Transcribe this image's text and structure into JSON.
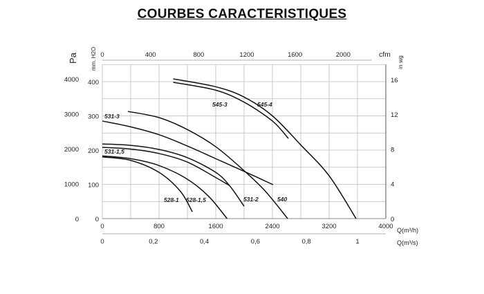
{
  "title": "COURBES CARACTERISTIQUES",
  "chart_data": {
    "type": "line",
    "title": "COURBES CARACTERISTIQUES",
    "x_axis": {
      "label": "Q(m³/h)",
      "range": [
        0,
        4000
      ],
      "ticks": [
        0,
        800,
        1600,
        2400,
        3200,
        4000
      ]
    },
    "x2_axis_bottom": {
      "label": "Q(m³/s)",
      "ticks": [
        "0",
        "0,2",
        "0,4",
        "0,6",
        "0,8",
        "1"
      ],
      "values": [
        0,
        0.2,
        0.4,
        0.6,
        0.8,
        1
      ]
    },
    "x_axis_top": {
      "label": "cfm",
      "ticks": [
        0,
        400,
        800,
        1200,
        1600,
        2000
      ]
    },
    "y_axis": {
      "label": "mm. H2O",
      "range": [
        0,
        450
      ],
      "ticks": [
        0,
        100,
        200,
        300,
        400
      ]
    },
    "y_axis_left_pa": {
      "label": "Pa",
      "ticks": [
        0,
        1000,
        2000,
        3000,
        4000
      ]
    },
    "y_axis_right": {
      "label": "in wg",
      "ticks": [
        0,
        4,
        8,
        12,
        16
      ]
    },
    "grid": true,
    "series": [
      {
        "name": "528-1",
        "points": [
          [
            0,
            180
          ],
          [
            400,
            170
          ],
          [
            800,
            135
          ],
          [
            1100,
            80
          ],
          [
            1270,
            20
          ]
        ]
      },
      {
        "name": "528-1,5",
        "points": [
          [
            0,
            183
          ],
          [
            400,
            175
          ],
          [
            800,
            155
          ],
          [
            1200,
            115
          ],
          [
            1500,
            65
          ],
          [
            1760,
            0
          ]
        ]
      },
      {
        "name": "531-1,5",
        "points": [
          [
            0,
            208
          ],
          [
            400,
            203
          ],
          [
            800,
            190
          ],
          [
            1200,
            165
          ],
          [
            1600,
            120
          ],
          [
            1790,
            97
          ]
        ]
      },
      {
        "name": "531-2",
        "points": [
          [
            0,
            218
          ],
          [
            400,
            214
          ],
          [
            800,
            202
          ],
          [
            1200,
            178
          ],
          [
            1600,
            135
          ],
          [
            1800,
            95
          ],
          [
            2000,
            36
          ]
        ]
      },
      {
        "name": "531-3",
        "points": [
          [
            0,
            285
          ],
          [
            400,
            268
          ],
          [
            800,
            245
          ],
          [
            1200,
            212
          ],
          [
            1600,
            175
          ],
          [
            2000,
            138
          ],
          [
            2410,
            99
          ]
        ]
      },
      {
        "name": "540",
        "points": [
          [
            360,
            313
          ],
          [
            800,
            295
          ],
          [
            1200,
            260
          ],
          [
            1600,
            210
          ],
          [
            2000,
            140
          ],
          [
            2300,
            80
          ],
          [
            2615,
            0
          ]
        ]
      },
      {
        "name": "545-3",
        "points": [
          [
            1000,
            398
          ],
          [
            1600,
            375
          ],
          [
            2000,
            340
          ],
          [
            2400,
            285
          ],
          [
            2625,
            234
          ]
        ]
      },
      {
        "name": "545-4",
        "points": [
          [
            1000,
            408
          ],
          [
            1600,
            385
          ],
          [
            2000,
            355
          ],
          [
            2400,
            300
          ],
          [
            2800,
            215
          ],
          [
            3200,
            125
          ],
          [
            3580,
            0
          ]
        ]
      }
    ]
  }
}
